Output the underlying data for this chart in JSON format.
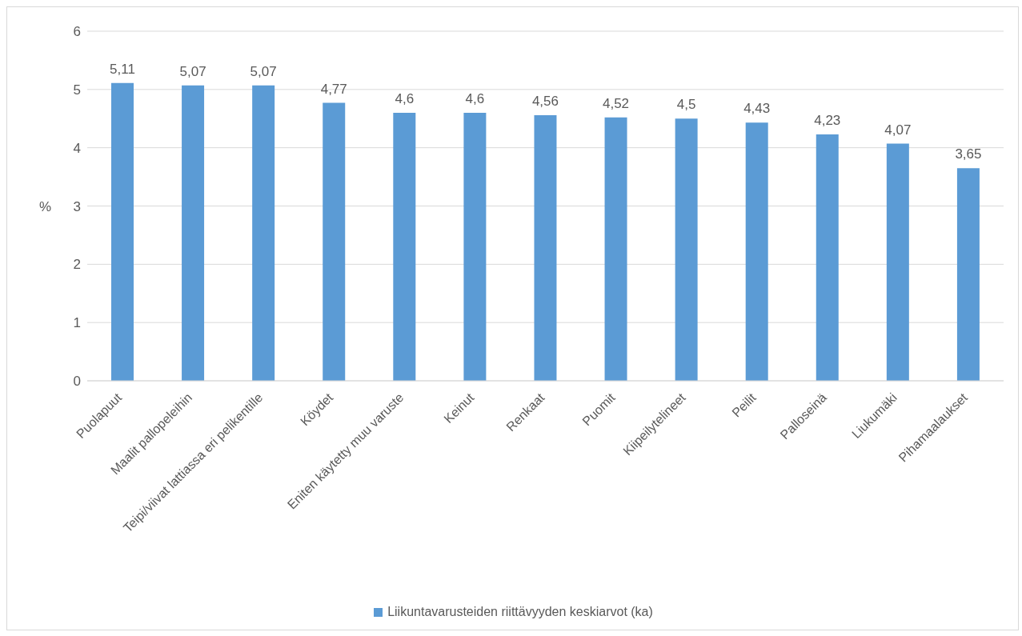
{
  "chart_data": {
    "type": "bar",
    "ylabel": "%",
    "categories": [
      "Puolapuut",
      "Maalit pallopeleihin",
      "Teipi/viivat lattiassa eri pelikentille",
      "Köydet",
      "Eniten käytetty muu varuste",
      "Keinut",
      "Renkaat",
      "Puomit",
      "Kiipeilytelineet",
      "Peilit",
      "Palloseinä",
      "Liukumäki",
      "Pihamaalaukset"
    ],
    "series": [
      {
        "name": "Liikuntavarusteiden riittävyyden keskiarvot (ka)",
        "color": "#5b9bd5",
        "values": [
          5.11,
          5.07,
          5.07,
          4.77,
          4.6,
          4.6,
          4.56,
          4.52,
          4.5,
          4.43,
          4.23,
          4.07,
          3.65
        ],
        "value_labels": [
          "5,11",
          "5,07",
          "5,07",
          "4,77",
          "4,6",
          "4,6",
          "4,56",
          "4,52",
          "4,5",
          "4,43",
          "4,23",
          "4,07",
          "3,65"
        ]
      }
    ],
    "ylim": [
      0,
      6
    ],
    "yticks": [
      0,
      1,
      2,
      3,
      4,
      5,
      6
    ],
    "grid": "y",
    "legend": "bottom"
  }
}
